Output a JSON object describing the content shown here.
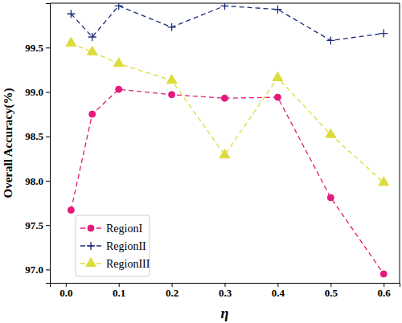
{
  "chart_data": {
    "type": "line",
    "x_label": "η",
    "y_label": "Overall Accuracy(%)",
    "x": [
      0.01,
      0.05,
      0.1,
      0.2,
      0.3,
      0.4,
      0.5,
      0.6
    ],
    "xlim": [
      -0.03,
      0.63
    ],
    "xticks": [
      {
        "value": 0,
        "label": "0.0"
      },
      0.1,
      0.2,
      0.3,
      0.4,
      0.5,
      0.6
    ],
    "ylim": [
      96.85,
      100.0
    ],
    "yticks": [
      {
        "value": 97,
        "label": "97.0"
      },
      97.5,
      {
        "value": 98,
        "label": "98.0"
      },
      98.5,
      {
        "value": 99,
        "label": "99.0"
      },
      99.5
    ],
    "grid": false,
    "legend": "lower left",
    "series": [
      {
        "name": "RegionI",
        "color": "#e31a7b",
        "marker": "circle",
        "line_style": "dashed",
        "values": [
          97.67,
          98.75,
          99.03,
          98.97,
          98.93,
          98.94,
          97.81,
          96.95
        ]
      },
      {
        "name": "RegionII",
        "color": "#1c2a78",
        "marker": "plus",
        "line_style": "dashed",
        "values": [
          99.88,
          99.62,
          99.97,
          99.73,
          99.97,
          99.93,
          99.58,
          99.66
        ]
      },
      {
        "name": "RegionIII",
        "color": "#dcdc3c",
        "marker": "triangle",
        "line_style": "dashed",
        "values": [
          99.55,
          99.45,
          99.32,
          99.13,
          98.29,
          99.16,
          98.52,
          97.98
        ]
      }
    ]
  }
}
